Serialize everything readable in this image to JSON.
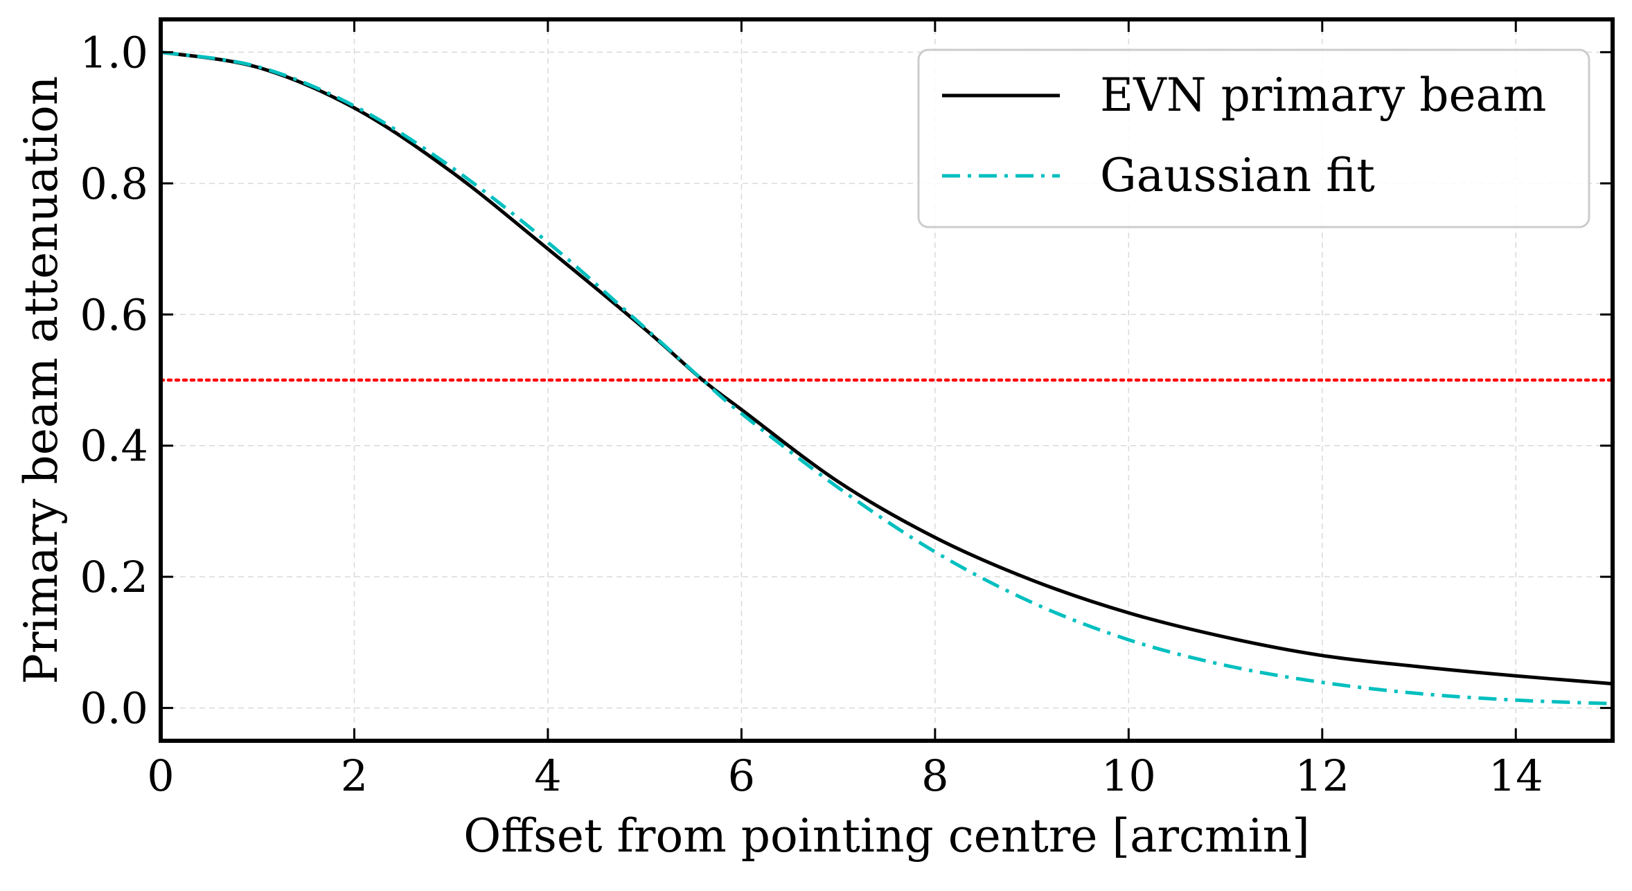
{
  "chart_data": {
    "type": "line",
    "title": "",
    "xlabel": "Offset from pointing centre [arcmin]",
    "ylabel": "Primary beam attenuation",
    "xlim": [
      0,
      15
    ],
    "ylim": [
      -0.05,
      1.05
    ],
    "xticks": [
      0,
      2,
      4,
      6,
      8,
      10,
      12,
      14
    ],
    "xtick_labels": [
      "0",
      "2",
      "4",
      "6",
      "8",
      "10",
      "12",
      "14"
    ],
    "yticks": [
      0.0,
      0.2,
      0.4,
      0.6,
      0.8,
      1.0
    ],
    "ytick_labels": [
      "0.0",
      "0.2",
      "0.4",
      "0.6",
      "0.8",
      "1.0"
    ],
    "grid": true,
    "legend_position": "top-right",
    "series": [
      {
        "name": "EVN primary beam",
        "color": "#000000",
        "style": "solid",
        "x": [
          0,
          1,
          2,
          3,
          4,
          5,
          5.6,
          6,
          7,
          8,
          9,
          10,
          11,
          12,
          13,
          14,
          15
        ],
        "y": [
          1.0,
          0.977,
          0.915,
          0.818,
          0.7,
          0.578,
          0.5,
          0.455,
          0.345,
          0.26,
          0.195,
          0.145,
          0.108,
          0.08,
          0.063,
          0.049,
          0.037
        ]
      },
      {
        "name": "Gaussian fit",
        "color": "#00bfbf",
        "style": "dashdot",
        "x": [
          0,
          1,
          2,
          3,
          4,
          5,
          5.6,
          6,
          7,
          8,
          9,
          10,
          11,
          12,
          13,
          14,
          15
        ],
        "y": [
          1.0,
          0.978,
          0.918,
          0.825,
          0.71,
          0.58,
          0.5,
          0.449,
          0.336,
          0.238,
          0.161,
          0.104,
          0.065,
          0.039,
          0.022,
          0.012,
          0.0065
        ]
      }
    ],
    "reference_lines": [
      {
        "orientation": "horizontal",
        "y": 0.5,
        "color": "#ff0000",
        "style": "dotted"
      }
    ]
  }
}
